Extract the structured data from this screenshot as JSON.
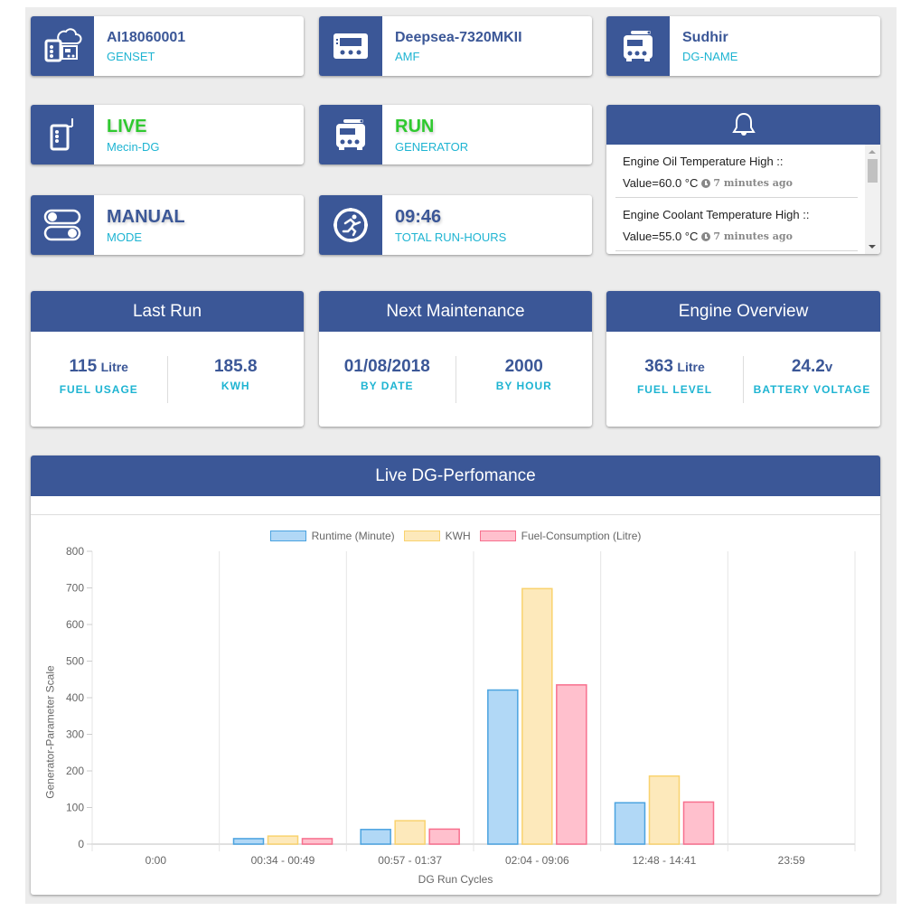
{
  "info_cards": {
    "genset": {
      "value": "AI18060001",
      "label": "GENSET",
      "icon": "genset-icon"
    },
    "amf": {
      "value": "Deepsea-7320MKII",
      "label": "AMF",
      "icon": "controller-panel-icon"
    },
    "dg_name": {
      "value": "Sudhir",
      "label": "DG-NAME",
      "icon": "generator-icon"
    },
    "live": {
      "value": "LIVE",
      "label": "Mecin-DG",
      "icon": "remote-device-icon"
    },
    "run": {
      "value": "RUN",
      "label": "GENERATOR",
      "icon": "generator-icon"
    },
    "mode": {
      "value": "MANUAL",
      "label": "MODE",
      "icon": "toggle-switches-icon"
    },
    "run_hours": {
      "value": "09:46",
      "label": "TOTAL RUN-HOURS",
      "icon": "runner-timer-icon"
    }
  },
  "alerts": {
    "icon": "bell-icon",
    "items": [
      {
        "title": "Engine Oil Temperature High ::",
        "value": "Value=60.0 °C",
        "ago": "7 minutes ago"
      },
      {
        "title": "Engine Coolant Temperature High ::",
        "value": "Value=55.0 °C",
        "ago": "7 minutes ago"
      }
    ]
  },
  "last_run": {
    "title": "Last Run",
    "fuel_value": "115",
    "fuel_unit": "Litre",
    "fuel_label": "FUEL USAGE",
    "kwh_value": "185.8",
    "kwh_label": "KWH"
  },
  "next_maintenance": {
    "title": "Next Maintenance",
    "date_value": "01/08/2018",
    "date_label": "BY DATE",
    "hour_value": "2000",
    "hour_label": "BY HOUR"
  },
  "engine_overview": {
    "title": "Engine Overview",
    "fuel_value": "363",
    "fuel_unit": "Litre",
    "fuel_label": "FUEL LEVEL",
    "battery_value": "24.2",
    "battery_unit": "v",
    "battery_label": "BATTERY VOLTAGE"
  },
  "performance": {
    "title": "Live DG-Perfomance"
  },
  "colors": {
    "primary": "#3b5797",
    "accent_text": "#1eb4d2",
    "status_green": "#2fc92f",
    "runtime_fill": "#b1d8f6",
    "runtime_border": "#4ba3e0",
    "kwh_fill": "#fde9bb",
    "kwh_border": "#f9d26e",
    "fuel_fill": "#ffc0cd",
    "fuel_border": "#f7708e"
  },
  "chart_data": {
    "type": "bar",
    "title": "Live DG-Perfomance",
    "xlabel": "DG Run Cycles",
    "ylabel": "Generator-Parameter Scale",
    "ylim": [
      0,
      800
    ],
    "yticks": [
      0,
      100,
      200,
      300,
      400,
      500,
      600,
      700,
      800
    ],
    "grid": true,
    "legend_position": "top",
    "categories": [
      "0:00",
      "00:34 - 00:49",
      "00:57 - 01:37",
      "02:04 - 09:06",
      "12:48 - 14:41",
      "23:59"
    ],
    "series": [
      {
        "name": "Runtime (Minute)",
        "values": [
          0,
          15,
          40,
          421,
          113,
          0
        ]
      },
      {
        "name": "KWH",
        "values": [
          0,
          22,
          64,
          698,
          186,
          0
        ]
      },
      {
        "name": "Fuel-Consumption (Litre)",
        "values": [
          0,
          15,
          41,
          435,
          115,
          0
        ]
      }
    ]
  }
}
